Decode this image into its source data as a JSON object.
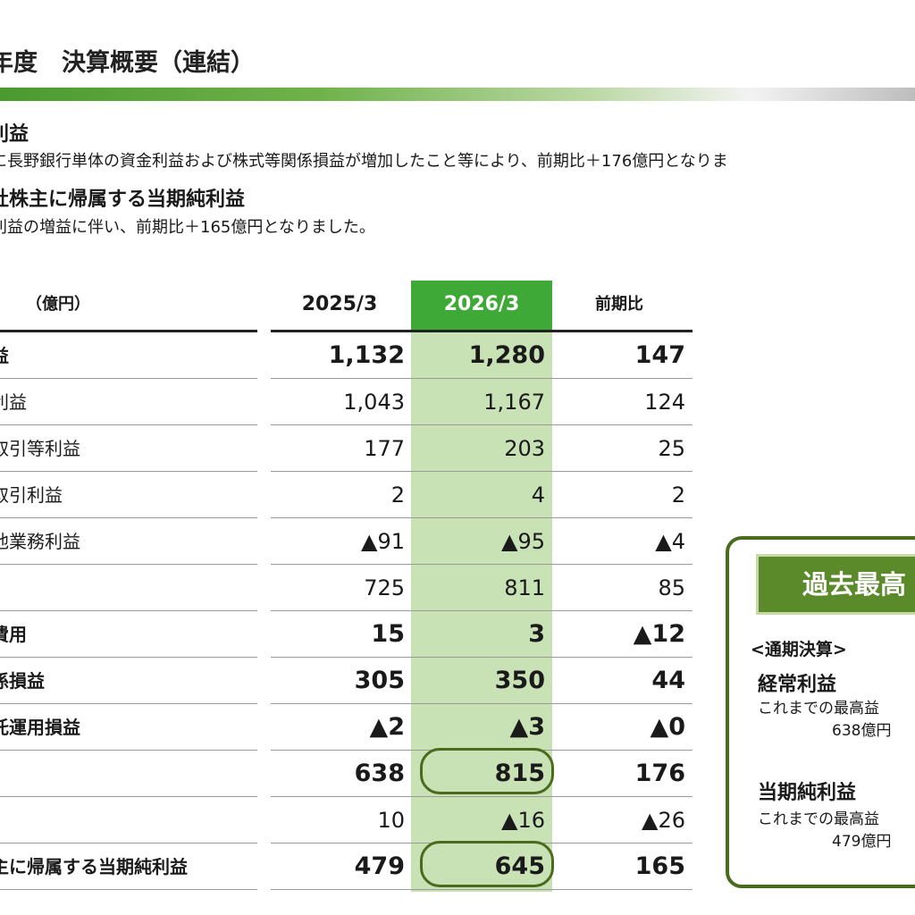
{
  "header": {
    "title": "年度　決算概要（連結）"
  },
  "summary": [
    {
      "heading": "利益",
      "text": "に長野銀行単体の資金利益および株式等関係損益が増加したこと等により、前期比＋176億円となりま"
    },
    {
      "heading": "社株主に帰属する当期純利益",
      "text": "利益の増益に伴い、前期比＋165億円となりました。"
    }
  ],
  "table": {
    "unit": "（億円）",
    "columns": [
      "2025/3",
      "2026/3",
      "前期比"
    ],
    "rows": [
      {
        "label": "益",
        "values": [
          "1,132",
          "1,280",
          "147"
        ],
        "bold": true
      },
      {
        "label": "利益",
        "values": [
          "1,043",
          "1,167",
          "124"
        ],
        "bold": false
      },
      {
        "label": "取引等利益",
        "values": [
          "177",
          "203",
          "25"
        ],
        "bold": false
      },
      {
        "label": "取引利益",
        "values": [
          "2",
          "4",
          "2"
        ],
        "bold": false
      },
      {
        "label": "他業務利益",
        "values": [
          "▲91",
          "▲95",
          "▲4"
        ],
        "bold": false
      },
      {
        "label": "",
        "values": [
          "725",
          "811",
          "85"
        ],
        "bold": false
      },
      {
        "label": "費用",
        "values": [
          "15",
          "3",
          "▲12"
        ],
        "bold": true
      },
      {
        "label": "係損益",
        "values": [
          "305",
          "350",
          "44"
        ],
        "bold": true
      },
      {
        "label": "託運用損益",
        "values": [
          "▲2",
          "▲3",
          "▲0"
        ],
        "bold": true
      },
      {
        "label": "",
        "values": [
          "638",
          "815",
          "176"
        ],
        "bold": true
      },
      {
        "label": "",
        "values": [
          "10",
          "▲16",
          "▲26"
        ],
        "bold": false
      },
      {
        "label": "主に帰属する当期純利益",
        "values": [
          "479",
          "645",
          "165"
        ],
        "bold": true
      }
    ]
  },
  "record_box": {
    "title": "過去最高",
    "subtitle": "<通期決算>",
    "items": [
      {
        "heading": "経常利益",
        "note": "これまでの最高益",
        "value": "638億円"
      },
      {
        "heading": "当期純利益",
        "note": "これまでの最高益",
        "value": "479億円"
      }
    ]
  },
  "colors": {
    "highlight_column": "#c9e2b5",
    "highlight_header": "#3ea936",
    "box_border": "#4a6a1e",
    "banner": "#5b8a2a"
  }
}
